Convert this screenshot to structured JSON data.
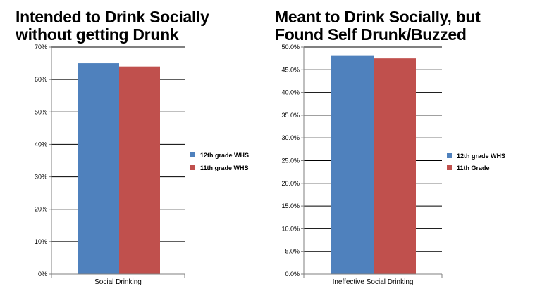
{
  "chart_data": [
    {
      "type": "bar",
      "title_lines": [
        "Intended to Drink Socially",
        "without getting Drunk"
      ],
      "categories": [
        "Social Drinking"
      ],
      "series": [
        {
          "name": "12th grade WHS",
          "values": [
            65
          ],
          "color": "#4f81bd"
        },
        {
          "name": "11th grade WHS",
          "values": [
            64
          ],
          "color": "#c0504d"
        }
      ],
      "ylim": [
        0,
        70
      ],
      "yticks": [
        0,
        10,
        20,
        30,
        40,
        50,
        60,
        70
      ],
      "ytick_labels": [
        "0%",
        "10%",
        "20%",
        "30%",
        "40%",
        "50%",
        "60%",
        "70%"
      ],
      "grid": true,
      "legend": "right"
    },
    {
      "type": "bar",
      "title_lines": [
        "Meant to Drink Socially, but",
        "Found Self Drunk/Buzzed"
      ],
      "categories": [
        "Ineffective Social Drinking"
      ],
      "series": [
        {
          "name": "12th grade WHS",
          "values": [
            48.2
          ],
          "color": "#4f81bd"
        },
        {
          "name": "11th Grade",
          "values": [
            47.5
          ],
          "color": "#c0504d"
        }
      ],
      "ylim": [
        0,
        50
      ],
      "yticks": [
        0,
        5,
        10,
        15,
        20,
        25,
        30,
        35,
        40,
        45,
        50
      ],
      "ytick_labels": [
        "0.0%",
        "5.0%",
        "10.0%",
        "15.0%",
        "20.0%",
        "25.0%",
        "30.0%",
        "35.0%",
        "40.0%",
        "45.0%",
        "50.0%"
      ],
      "grid": true,
      "legend": "right"
    }
  ]
}
